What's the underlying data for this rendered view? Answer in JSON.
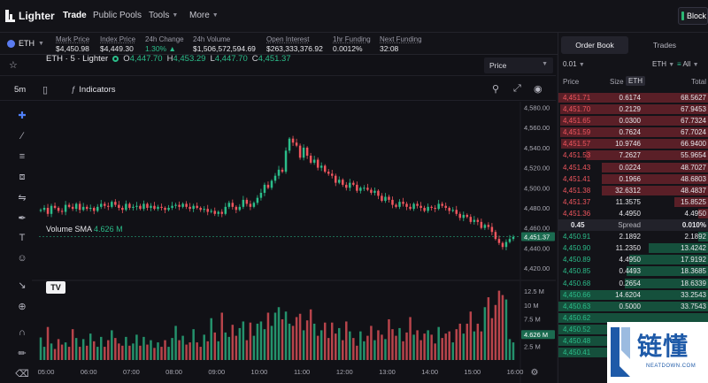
{
  "nav": {
    "logo_text": "Lighter",
    "items": [
      {
        "label": "Trade",
        "active": true
      },
      {
        "label": "Public Pools",
        "active": false
      },
      {
        "label": "Tools",
        "dropdown": true
      },
      {
        "label": "More",
        "dropdown": true
      }
    ],
    "block_label": "Block"
  },
  "ticker": {
    "symbol": "ETH",
    "stats": [
      {
        "label": "Mark Price",
        "value": "$4,450.98"
      },
      {
        "label": "Index Price",
        "value": "$4,449.30"
      },
      {
        "label": "24h Change",
        "value": "1.30% ▲"
      },
      {
        "label": "24h Volume",
        "value": "$1,506,572,594.69"
      },
      {
        "label": "Open Interest",
        "value": "$263,333,376.92"
      },
      {
        "label": "1hr Funding",
        "value": "0.0012%"
      },
      {
        "label": "Next Funding",
        "value": "32:08"
      }
    ]
  },
  "chart_toolbar": {
    "price_select": "Price",
    "timeframe": "5m",
    "indicators_label": "Indicators"
  },
  "legend": {
    "name": "ETH · 5 · Lighter",
    "o_key": "O",
    "o": "4,447.70",
    "h_key": "H",
    "h": "4,453.29",
    "l_key": "L",
    "l": "4,447.70",
    "c_key": "C",
    "c": "4,451.37"
  },
  "volume": {
    "label": "Volume SMA",
    "value": "4.626 M"
  },
  "chart_data": {
    "type": "candlestick",
    "price_axis": {
      "ticks": [
        4580,
        4560,
        4540,
        4520,
        4500,
        4480,
        4460,
        4440,
        4420
      ],
      "last_price": "4,451.37"
    },
    "volume_axis": {
      "ticks": [
        "12.5 M",
        "10 M",
        "7.5 M",
        "5 M",
        "2.5 M"
      ],
      "current": "4.626 M"
    },
    "time_axis": [
      "05:00",
      "06:00",
      "07:00",
      "08:00",
      "09:00",
      "10:00",
      "11:00",
      "12:00",
      "13:00",
      "14:00",
      "15:00",
      "16:00"
    ],
    "close_path": [
      4478,
      4480,
      4474,
      4482,
      4480,
      4477,
      4476,
      4483,
      4481,
      4479,
      4484,
      4478,
      4481,
      4479,
      4480,
      4477,
      4481,
      4484,
      4482,
      4481,
      4486,
      4483,
      4480,
      4478,
      4484,
      4480,
      4481,
      4482,
      4479,
      4484,
      4480,
      4482,
      4479,
      4481,
      4480,
      4478,
      4480,
      4482,
      4483,
      4481,
      4484,
      4481,
      4479,
      4482,
      4480,
      4478,
      4479,
      4476,
      4477,
      4474,
      4476,
      4474,
      4481,
      4485,
      4481,
      4478,
      4481,
      4488,
      4484,
      4481,
      4485,
      4490,
      4495,
      4503,
      4500,
      4507,
      4512,
      4518,
      4516,
      4537,
      4549,
      4545,
      4542,
      4530,
      4540,
      4532,
      4525,
      4528,
      4520,
      4522,
      4516,
      4514,
      4512,
      4505,
      4508,
      4503,
      4500,
      4505,
      4503,
      4497,
      4500,
      4500,
      4498,
      4495,
      4497,
      4492,
      4487,
      4491,
      4488,
      4483,
      4481,
      4486,
      4484,
      4481,
      4479,
      4484,
      4482,
      4480,
      4477,
      4481,
      4480,
      4479,
      4484,
      4482,
      4480,
      4477,
      4478,
      4474,
      4470,
      4473,
      4471,
      4466,
      4468,
      4466,
      4460,
      4463,
      4461,
      4456,
      4449,
      4445,
      4441,
      4446,
      4449,
      4451
    ],
    "volumes_m": [
      4.1,
      2.4,
      6.0,
      3.0,
      2.0,
      3.8,
      2.8,
      3.2,
      2.4,
      5.6,
      4.0,
      2.4,
      3.8,
      2.6,
      4.8,
      3.4,
      2.4,
      4.2,
      2.4,
      3.6,
      5.4,
      4.0,
      3.0,
      2.6,
      4.2,
      2.6,
      3.0,
      4.6,
      2.6,
      4.2,
      2.8,
      3.6,
      2.2,
      3.2,
      2.4,
      3.6,
      2.4,
      4.0,
      6.2,
      3.6,
      4.4,
      2.8,
      3.2,
      5.6,
      3.2,
      2.4,
      4.6,
      3.4,
      7.6,
      5.0,
      3.4,
      8.6,
      5.0,
      4.2,
      6.4,
      4.4,
      5.8,
      7.0,
      3.6,
      6.8,
      4.4,
      6.6,
      7.0,
      5.6,
      8.6,
      6.2,
      8.6,
      9.6,
      7.4,
      8.8,
      6.6,
      6.2,
      7.8,
      8.4,
      5.4,
      7.2,
      9.2,
      6.6,
      4.4,
      5.4,
      6.8,
      4.0,
      6.8,
      4.8,
      5.8,
      3.6,
      7.0,
      5.2,
      4.0,
      2.6,
      5.2,
      3.4,
      4.4,
      6.2,
      3.6,
      5.4,
      4.6,
      3.8,
      7.4,
      5.6,
      4.4,
      5.8,
      3.4,
      5.0,
      7.8,
      4.6,
      5.4,
      3.6,
      4.8,
      5.4,
      4.6,
      3.0,
      6.0,
      4.0,
      4.8,
      5.2,
      3.2,
      5.6,
      6.6,
      4.8,
      6.6,
      8.8,
      5.2,
      6.6,
      5.2,
      9.6,
      11.4,
      7.6,
      10.0,
      12.6,
      11.8,
      11.0,
      3.8,
      3.2
    ]
  },
  "orderbook": {
    "tabs": [
      "Order Book",
      "Trades"
    ],
    "tick": "0.01",
    "asset": "ETH",
    "filter": "All",
    "headers": {
      "price": "Price",
      "size": "Size",
      "size_unit": "ETH",
      "total": "Total"
    },
    "asks": [
      {
        "price": "4,451.71",
        "size": "0.6174",
        "total": "68.5627",
        "depth": 1.0
      },
      {
        "price": "4,451.70",
        "size": "0.2129",
        "total": "67.9453",
        "depth": 0.99
      },
      {
        "price": "4,451.65",
        "size": "0.0300",
        "total": "67.7324",
        "depth": 0.99
      },
      {
        "price": "4,451.59",
        "size": "0.7624",
        "total": "67.7024",
        "depth": 0.99
      },
      {
        "price": "4,451.57",
        "size": "10.9746",
        "total": "66.9400",
        "depth": 0.98
      },
      {
        "price": "4,451.53",
        "size": "7.2627",
        "total": "55.9654",
        "depth": 0.82
      },
      {
        "price": "4,451.43",
        "size": "0.0224",
        "total": "48.7027",
        "depth": 0.71
      },
      {
        "price": "4,451.41",
        "size": "0.1966",
        "total": "48.6803",
        "depth": 0.71
      },
      {
        "price": "4,451.38",
        "size": "32.6312",
        "total": "48.4837",
        "depth": 0.71
      },
      {
        "price": "4,451.37",
        "size": "11.3575",
        "total": "15.8525",
        "depth": 0.23
      },
      {
        "price": "4,451.36",
        "size": "4.4950",
        "total": "4.4950",
        "depth": 0.07
      }
    ],
    "spread": {
      "value": "0.45",
      "label": "Spread",
      "pct": "0.010%"
    },
    "bids": [
      {
        "price": "4,450.91",
        "size": "2.1892",
        "total": "2.1892",
        "depth": 0.07
      },
      {
        "price": "4,450.90",
        "size": "11.2350",
        "total": "13.4242",
        "depth": 0.4
      },
      {
        "price": "4,450.89",
        "size": "4.4950",
        "total": "17.9192",
        "depth": 0.53
      },
      {
        "price": "4,450.85",
        "size": "0.4493",
        "total": "18.3685",
        "depth": 0.55
      },
      {
        "price": "4,450.68",
        "size": "0.2654",
        "total": "18.6339",
        "depth": 0.56
      },
      {
        "price": "4,450.66",
        "size": "14.6204",
        "total": "33.2543",
        "depth": 0.99
      },
      {
        "price": "4,450.63",
        "size": "0.5000",
        "total": "33.7543",
        "depth": 1.0
      },
      {
        "price": "4,450.62",
        "size": "",
        "total": "",
        "depth": 1.0
      },
      {
        "price": "4,450.52",
        "size": "",
        "total": "",
        "depth": 1.0
      },
      {
        "price": "4,450.48",
        "size": "",
        "total": "",
        "depth": 1.0
      },
      {
        "price": "4,450.41",
        "size": "",
        "total": "",
        "depth": 1.0
      }
    ]
  },
  "watermark": {
    "text": "链懂",
    "sub": "NEATDOWN.COM"
  },
  "colors": {
    "up": "#2bbd8a",
    "down": "#f0565e",
    "bg": "#111116",
    "ask_bg": "#5a1f27",
    "bid_bg": "#15503c"
  }
}
